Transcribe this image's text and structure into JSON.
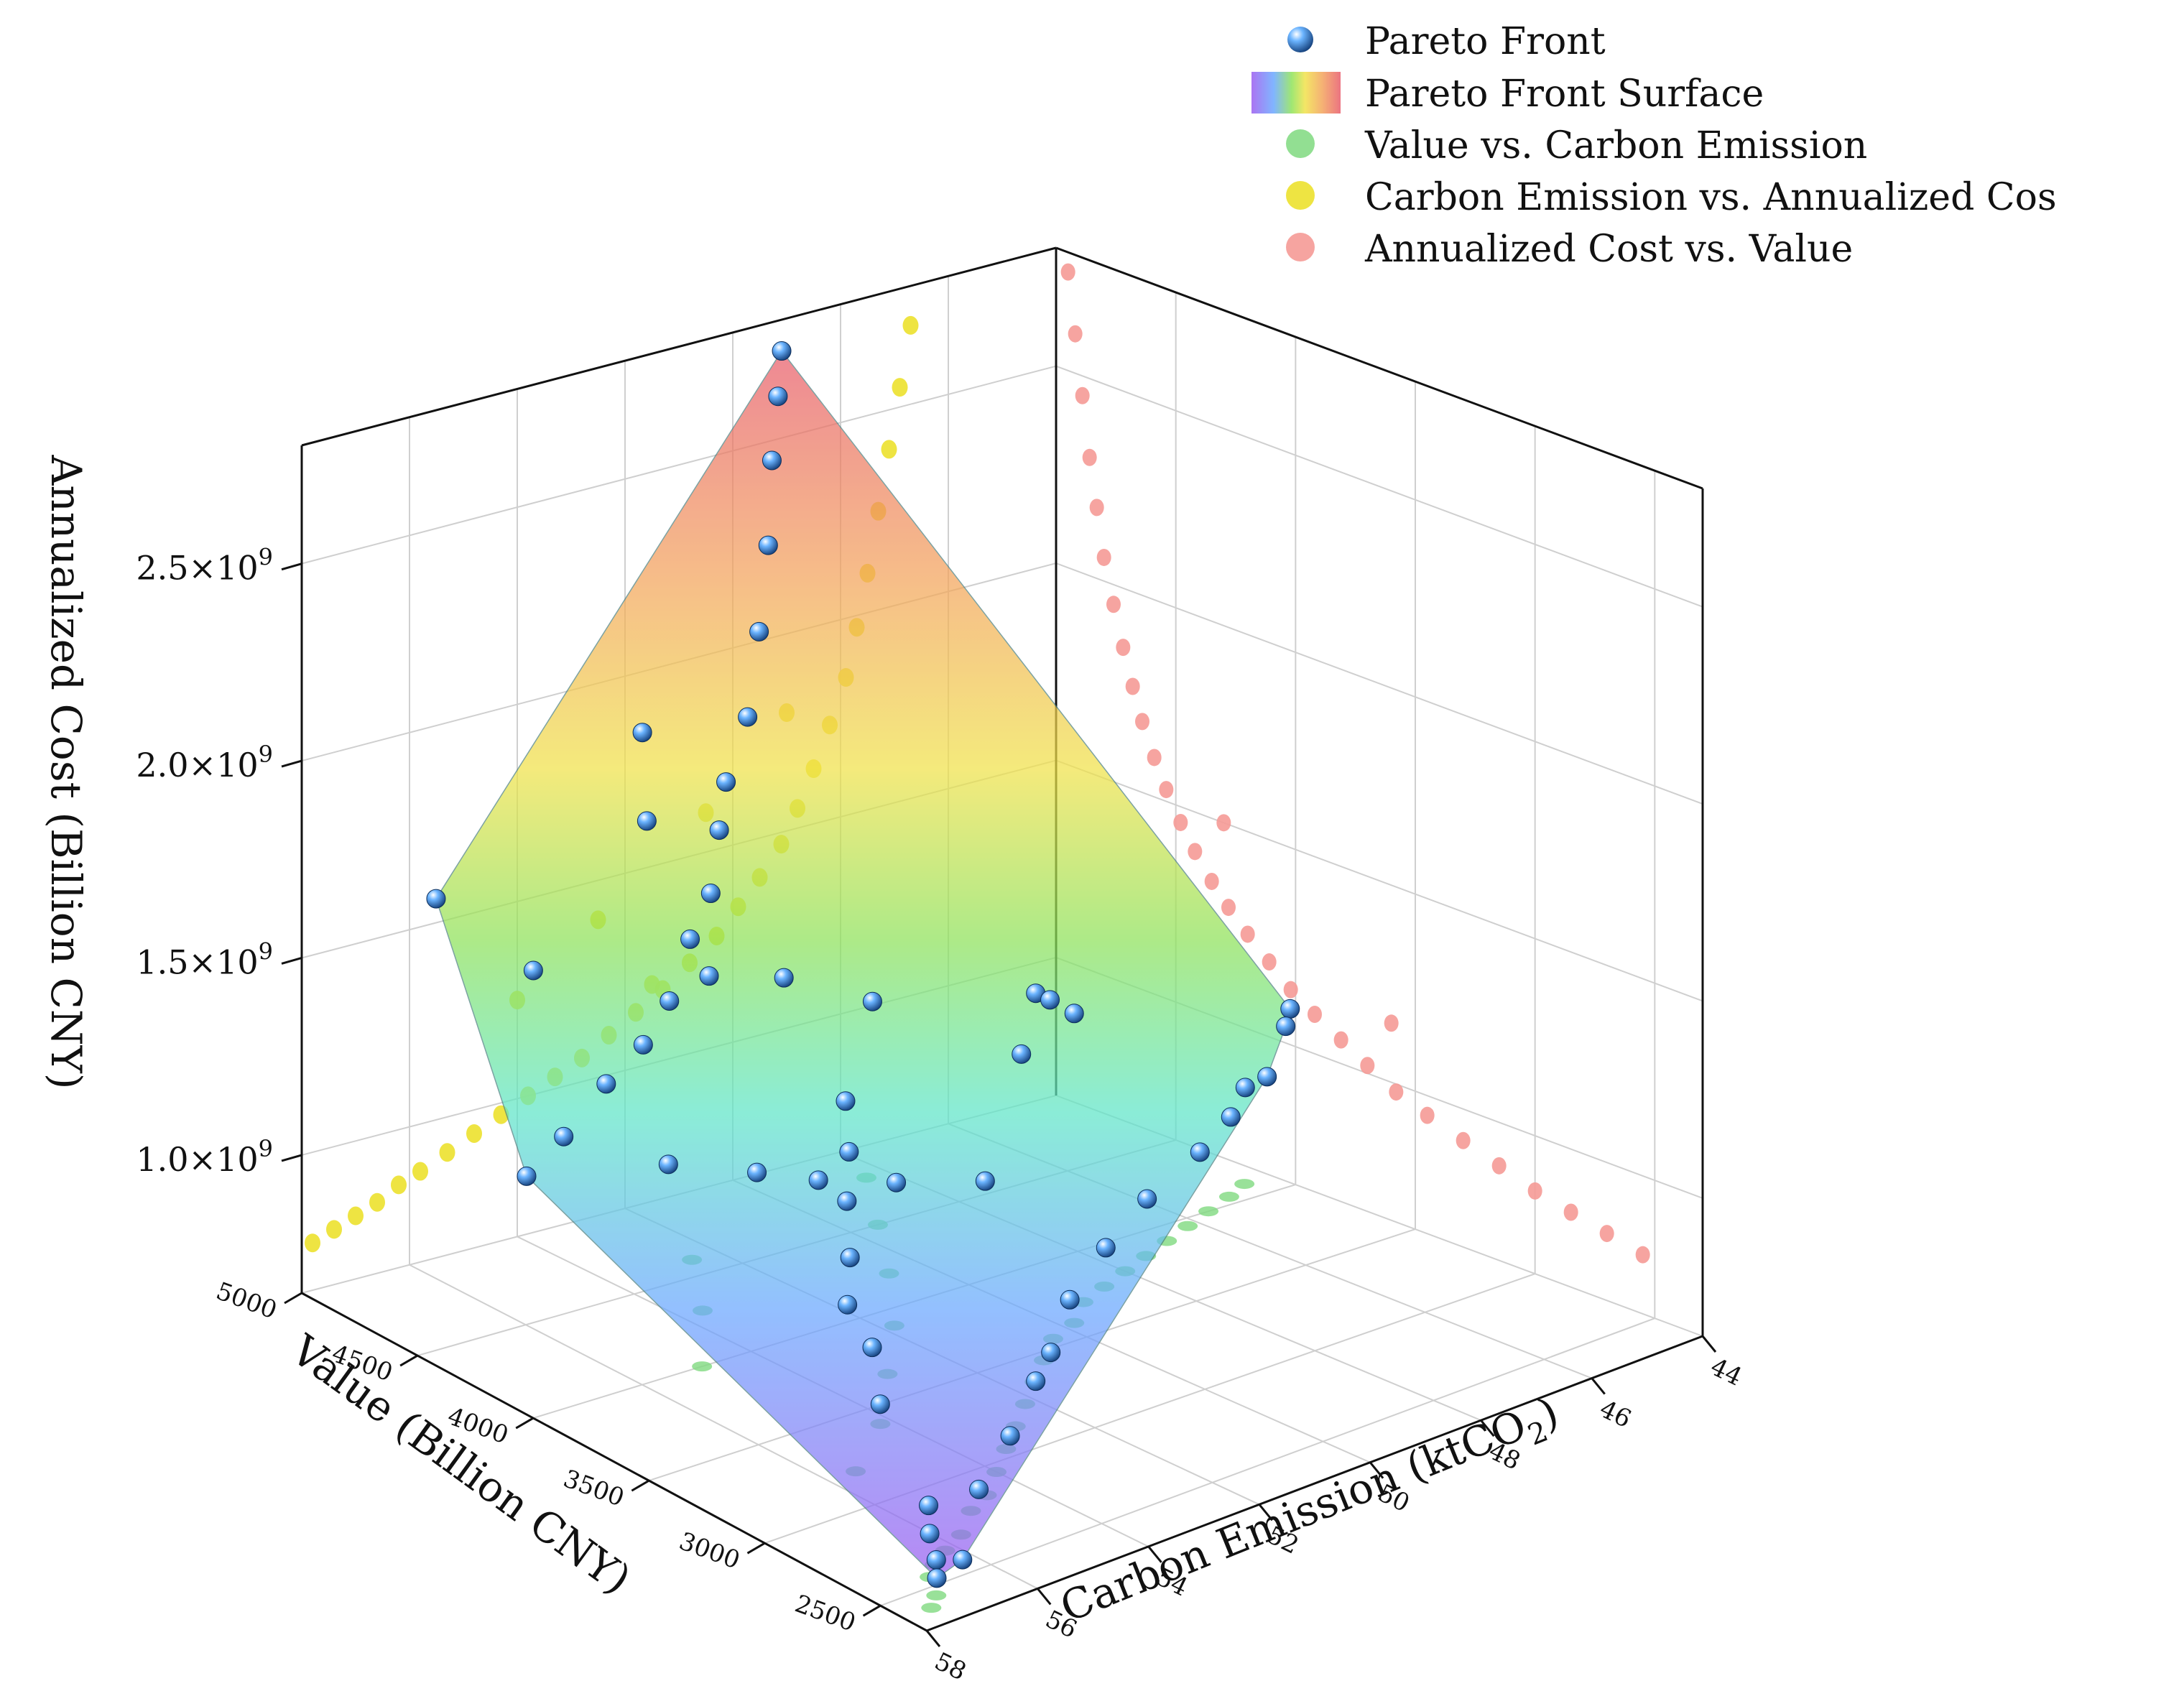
{
  "colors": {
    "pareto_front": "#2f7fd6",
    "value_vs_carbon": "#7fd97f",
    "carbon_vs_cost": "#ece12e",
    "cost_vs_value": "#f59a96",
    "surface_gradient": [
      "#9b5cf0",
      "#6aa8ff",
      "#5fe6c8",
      "#8ee35a",
      "#f1e24a",
      "#f3a25c",
      "#e85b6b"
    ],
    "grid": "#cfcfcf"
  },
  "chart_data": {
    "type": "scatter3d",
    "title": "",
    "legend_position": "top-right",
    "grid": true,
    "legend": [
      {
        "label": "Pareto Front",
        "icon": "sphere-icon"
      },
      {
        "label": "Pareto Front Surface",
        "icon": "rainbow-swatch-icon"
      },
      {
        "label": "Value vs. Carbon Emission",
        "icon": "green-dot-icon"
      },
      {
        "label": "Carbon Emission vs. Annualized Cos",
        "icon": "yellow-dot-icon"
      },
      {
        "label": "Annualized Cost vs. Value",
        "icon": "pink-dot-icon"
      }
    ],
    "axes": {
      "x": {
        "label_main": "Carbon Emission (ktCO",
        "label_sub": "2",
        "label_end": ")",
        "range": [
          44,
          58
        ],
        "ticks": [
          44,
          46,
          48,
          50,
          52,
          54,
          56,
          58
        ],
        "tick_labels": [
          "44",
          "46",
          "48",
          "50",
          "52",
          "54",
          "56",
          "58"
        ]
      },
      "y": {
        "label": "Value (Billion CNY)",
        "range": [
          2300,
          5000
        ],
        "ticks": [
          2500,
          3000,
          3500,
          4000,
          4500,
          5000
        ],
        "tick_labels": [
          "2500",
          "3000",
          "3500",
          "4000",
          "4500",
          "5000"
        ]
      },
      "z": {
        "label": "Annualized Cost (Billion CNY)",
        "range": [
          650000000,
          2800000000
        ],
        "ticks": [
          1000000000,
          1500000000,
          2000000000,
          2500000000
        ],
        "tick_labels": [
          {
            "mant": "1.0×10",
            "exp": "9"
          },
          {
            "mant": "1.5×10",
            "exp": "9"
          },
          {
            "mant": "2.0×10",
            "exp": "9"
          },
          {
            "mant": "2.5×10",
            "exp": "9"
          }
        ]
      }
    },
    "series": [
      {
        "name": "Pareto Front",
        "points": [
          [
            57.4,
            2400,
            720000000
          ],
          [
            57.2,
            2450,
            740000000
          ],
          [
            56.9,
            2550,
            760000000
          ],
          [
            56.5,
            2650,
            780000000
          ],
          [
            56.6,
            2480,
            700000000
          ],
          [
            55.8,
            2600,
            800000000
          ],
          [
            54.6,
            2750,
            830000000
          ],
          [
            53.5,
            2900,
            870000000
          ],
          [
            52.8,
            3000,
            880000000
          ],
          [
            51.6,
            3200,
            900000000
          ],
          [
            50.3,
            3350,
            930000000
          ],
          [
            48.9,
            3500,
            950000000
          ],
          [
            47.5,
            3600,
            980000000
          ],
          [
            46.5,
            3700,
            1000000000
          ],
          [
            45.8,
            3800,
            1020000000
          ],
          [
            45.4,
            3800,
            1030000000
          ],
          [
            44.4,
            3950,
            1080000000
          ],
          [
            44.1,
            4000,
            1100000000
          ],
          [
            47.2,
            4300,
            1180000000
          ],
          [
            48.5,
            3900,
            1300000000
          ],
          [
            49.6,
            4500,
            1220000000
          ],
          [
            50.8,
            4600,
            1300000000
          ],
          [
            52.4,
            4550,
            1380000000
          ],
          [
            55.0,
            4700,
            1450000000
          ],
          [
            56.8,
            4700,
            1700000000
          ],
          [
            53.2,
            4650,
            2000000000
          ],
          [
            52.9,
            4700,
            1750000000
          ],
          [
            51.5,
            4750,
            1500000000
          ],
          [
            50.6,
            4800,
            1900000000
          ],
          [
            50.3,
            4820,
            2100000000
          ],
          [
            50.0,
            4850,
            2300000000
          ],
          [
            49.8,
            4880,
            2500000000
          ],
          [
            49.6,
            4900,
            2650000000
          ],
          [
            49.4,
            4930,
            2750000000
          ],
          [
            51.0,
            4800,
            1750000000
          ],
          [
            51.3,
            4760,
            1650000000
          ],
          [
            52.1,
            4700,
            1420000000
          ],
          [
            52.7,
            4650,
            1300000000
          ],
          [
            53.4,
            4600,
            1230000000
          ],
          [
            54.3,
            4550,
            1180000000
          ],
          [
            55.3,
            4500,
            1100000000
          ],
          [
            56.2,
            4450,
            1050000000
          ],
          [
            53.8,
            4400,
            1000000000
          ],
          [
            52.6,
            4300,
            960000000
          ],
          [
            51.9,
            4200,
            940000000
          ],
          [
            50.9,
            4100,
            920000000
          ],
          [
            49.7,
            4000,
            900000000
          ],
          [
            48.6,
            4100,
            1150000000
          ],
          [
            47.9,
            4200,
            1250000000
          ],
          [
            55.9,
            3000,
            900000000
          ],
          [
            55.2,
            3200,
            950000000
          ],
          [
            54.8,
            3400,
            980000000
          ],
          [
            53.9,
            3600,
            1000000000
          ],
          [
            53.1,
            3800,
            1050000000
          ],
          [
            52.2,
            4000,
            1080000000
          ],
          [
            51.4,
            4200,
            1120000000
          ]
        ]
      },
      {
        "name": "Value vs. Carbon Emission",
        "points": [
          [
            57.5,
            2400
          ],
          [
            57.2,
            2450
          ],
          [
            56.9,
            2550
          ],
          [
            56.6,
            2600
          ],
          [
            56.2,
            2650
          ],
          [
            55.7,
            2700
          ],
          [
            55.1,
            2800
          ],
          [
            54.6,
            2850
          ],
          [
            54.0,
            2950
          ],
          [
            53.4,
            3050
          ],
          [
            52.8,
            3150
          ],
          [
            52.2,
            3250
          ],
          [
            51.6,
            3350
          ],
          [
            51.0,
            3450
          ],
          [
            50.4,
            3550
          ],
          [
            49.8,
            3600
          ],
          [
            49.2,
            3700
          ],
          [
            48.6,
            3750
          ],
          [
            48.0,
            3800
          ],
          [
            47.4,
            3850
          ],
          [
            46.8,
            3900
          ],
          [
            46.2,
            3950
          ],
          [
            45.6,
            4000
          ],
          [
            45.0,
            4050
          ],
          [
            44.5,
            4100
          ],
          [
            55.5,
            3200
          ],
          [
            54.2,
            3400
          ],
          [
            53.0,
            3650
          ],
          [
            51.8,
            3900
          ],
          [
            50.6,
            4200
          ],
          [
            49.5,
            4500
          ],
          [
            48.4,
            4800
          ],
          [
            52.5,
            4600
          ],
          [
            53.6,
            4300
          ],
          [
            54.9,
            4000
          ]
        ]
      },
      {
        "name": "Carbon Emission vs. Annualized Cos",
        "points": [
          [
            57.8,
            770000000
          ],
          [
            57.4,
            790000000
          ],
          [
            57.0,
            810000000
          ],
          [
            56.6,
            830000000
          ],
          [
            56.2,
            860000000
          ],
          [
            55.8,
            880000000
          ],
          [
            55.3,
            910000000
          ],
          [
            54.8,
            940000000
          ],
          [
            54.3,
            970000000
          ],
          [
            53.8,
            1000000000
          ],
          [
            53.3,
            1030000000
          ],
          [
            52.8,
            1060000000
          ],
          [
            52.3,
            1100000000
          ],
          [
            51.8,
            1140000000
          ],
          [
            51.3,
            1180000000
          ],
          [
            50.8,
            1230000000
          ],
          [
            50.3,
            1280000000
          ],
          [
            49.9,
            1340000000
          ],
          [
            49.5,
            1400000000
          ],
          [
            49.1,
            1470000000
          ],
          [
            48.8,
            1550000000
          ],
          [
            48.5,
            1640000000
          ],
          [
            48.2,
            1740000000
          ],
          [
            47.9,
            1850000000
          ],
          [
            47.7,
            1970000000
          ],
          [
            47.5,
            2100000000
          ],
          [
            47.3,
            2250000000
          ],
          [
            47.1,
            2400000000
          ],
          [
            46.9,
            2550000000
          ],
          [
            46.7,
            2700000000
          ],
          [
            54.0,
            1250000000
          ],
          [
            52.5,
            1400000000
          ],
          [
            50.5,
            1600000000
          ],
          [
            49.0,
            1800000000
          ],
          [
            51.5,
            1200000000
          ]
        ]
      },
      {
        "name": "Annualized Cost vs. Value",
        "points": [
          [
            4950,
            2750000000
          ],
          [
            4920,
            2600000000
          ],
          [
            4890,
            2450000000
          ],
          [
            4860,
            2300000000
          ],
          [
            4830,
            2180000000
          ],
          [
            4800,
            2060000000
          ],
          [
            4760,
            1950000000
          ],
          [
            4720,
            1850000000
          ],
          [
            4680,
            1760000000
          ],
          [
            4640,
            1680000000
          ],
          [
            4590,
            1600000000
          ],
          [
            4540,
            1530000000
          ],
          [
            4480,
            1460000000
          ],
          [
            4420,
            1400000000
          ],
          [
            4350,
            1340000000
          ],
          [
            4280,
            1290000000
          ],
          [
            4200,
            1240000000
          ],
          [
            4110,
            1190000000
          ],
          [
            4020,
            1140000000
          ],
          [
            3920,
            1100000000
          ],
          [
            3810,
            1060000000
          ],
          [
            3700,
            1020000000
          ],
          [
            3580,
            980000000
          ],
          [
            3450,
            950000000
          ],
          [
            3300,
            920000000
          ],
          [
            3150,
            890000000
          ],
          [
            3000,
            860000000
          ],
          [
            2850,
            840000000
          ],
          [
            2700,
            820000000
          ],
          [
            2550,
            800000000
          ],
          [
            4300,
            1500000000
          ],
          [
            3600,
            1150000000
          ]
        ]
      }
    ]
  }
}
